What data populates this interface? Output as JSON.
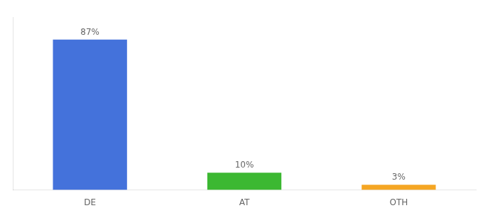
{
  "chart_data": {
    "type": "bar",
    "categories": [
      "DE",
      "AT",
      "OTH"
    ],
    "values": [
      87,
      10,
      3
    ],
    "value_labels": [
      "87%",
      "10%",
      "3%"
    ],
    "colors": [
      "#4472db",
      "#3cb832",
      "#f5a623"
    ],
    "ylim": [
      0,
      100
    ],
    "data_labels": true,
    "tick_labels": "x",
    "grid": false
  }
}
